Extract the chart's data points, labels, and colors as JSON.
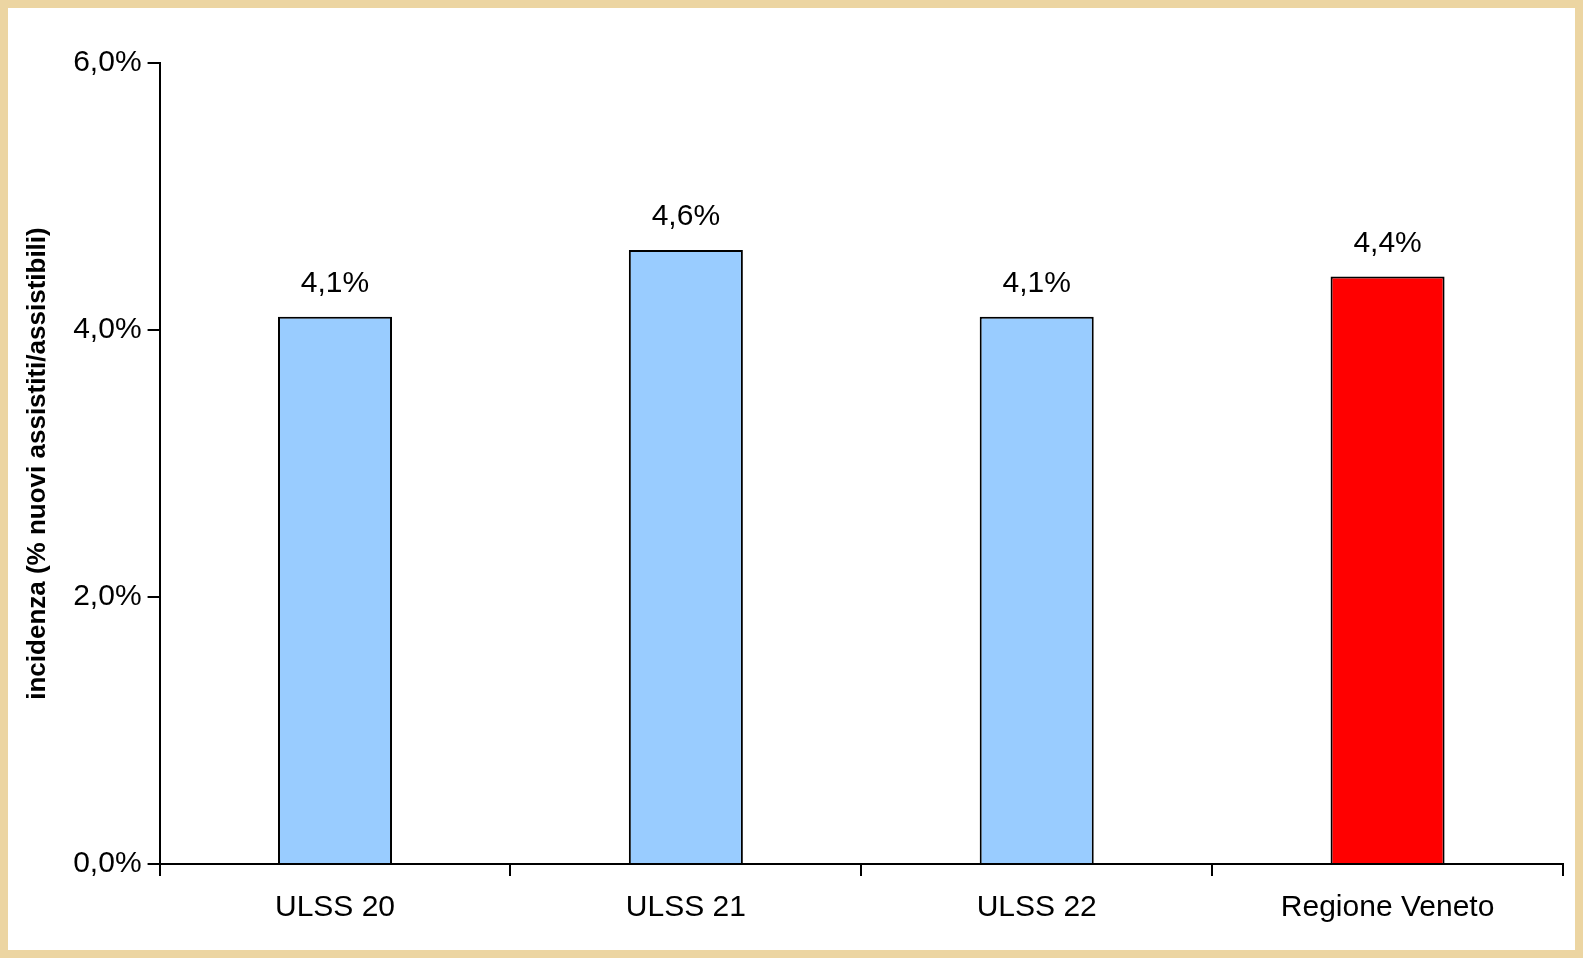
{
  "chart_data": {
    "type": "bar",
    "ylabel": "incidenza (% nuovi assistiti/assistibili)",
    "categories": [
      "ULSS 20",
      "ULSS 21",
      "ULSS 22",
      "Regione Veneto"
    ],
    "values": [
      4.1,
      4.6,
      4.1,
      4.4
    ],
    "colors": [
      "#99ccff",
      "#99ccff",
      "#99ccff",
      "#ff0000"
    ],
    "value_labels": [
      "4,1%",
      "4,6%",
      "4,1%",
      "4,4%"
    ],
    "ylim": [
      0,
      6
    ],
    "yticks": [
      {
        "value": 0,
        "label": "0,0%"
      },
      {
        "value": 2,
        "label": "2,0%"
      },
      {
        "value": 4,
        "label": "4,0%"
      },
      {
        "value": 6,
        "label": "6,0%"
      }
    ],
    "grid": false,
    "legend": false
  }
}
